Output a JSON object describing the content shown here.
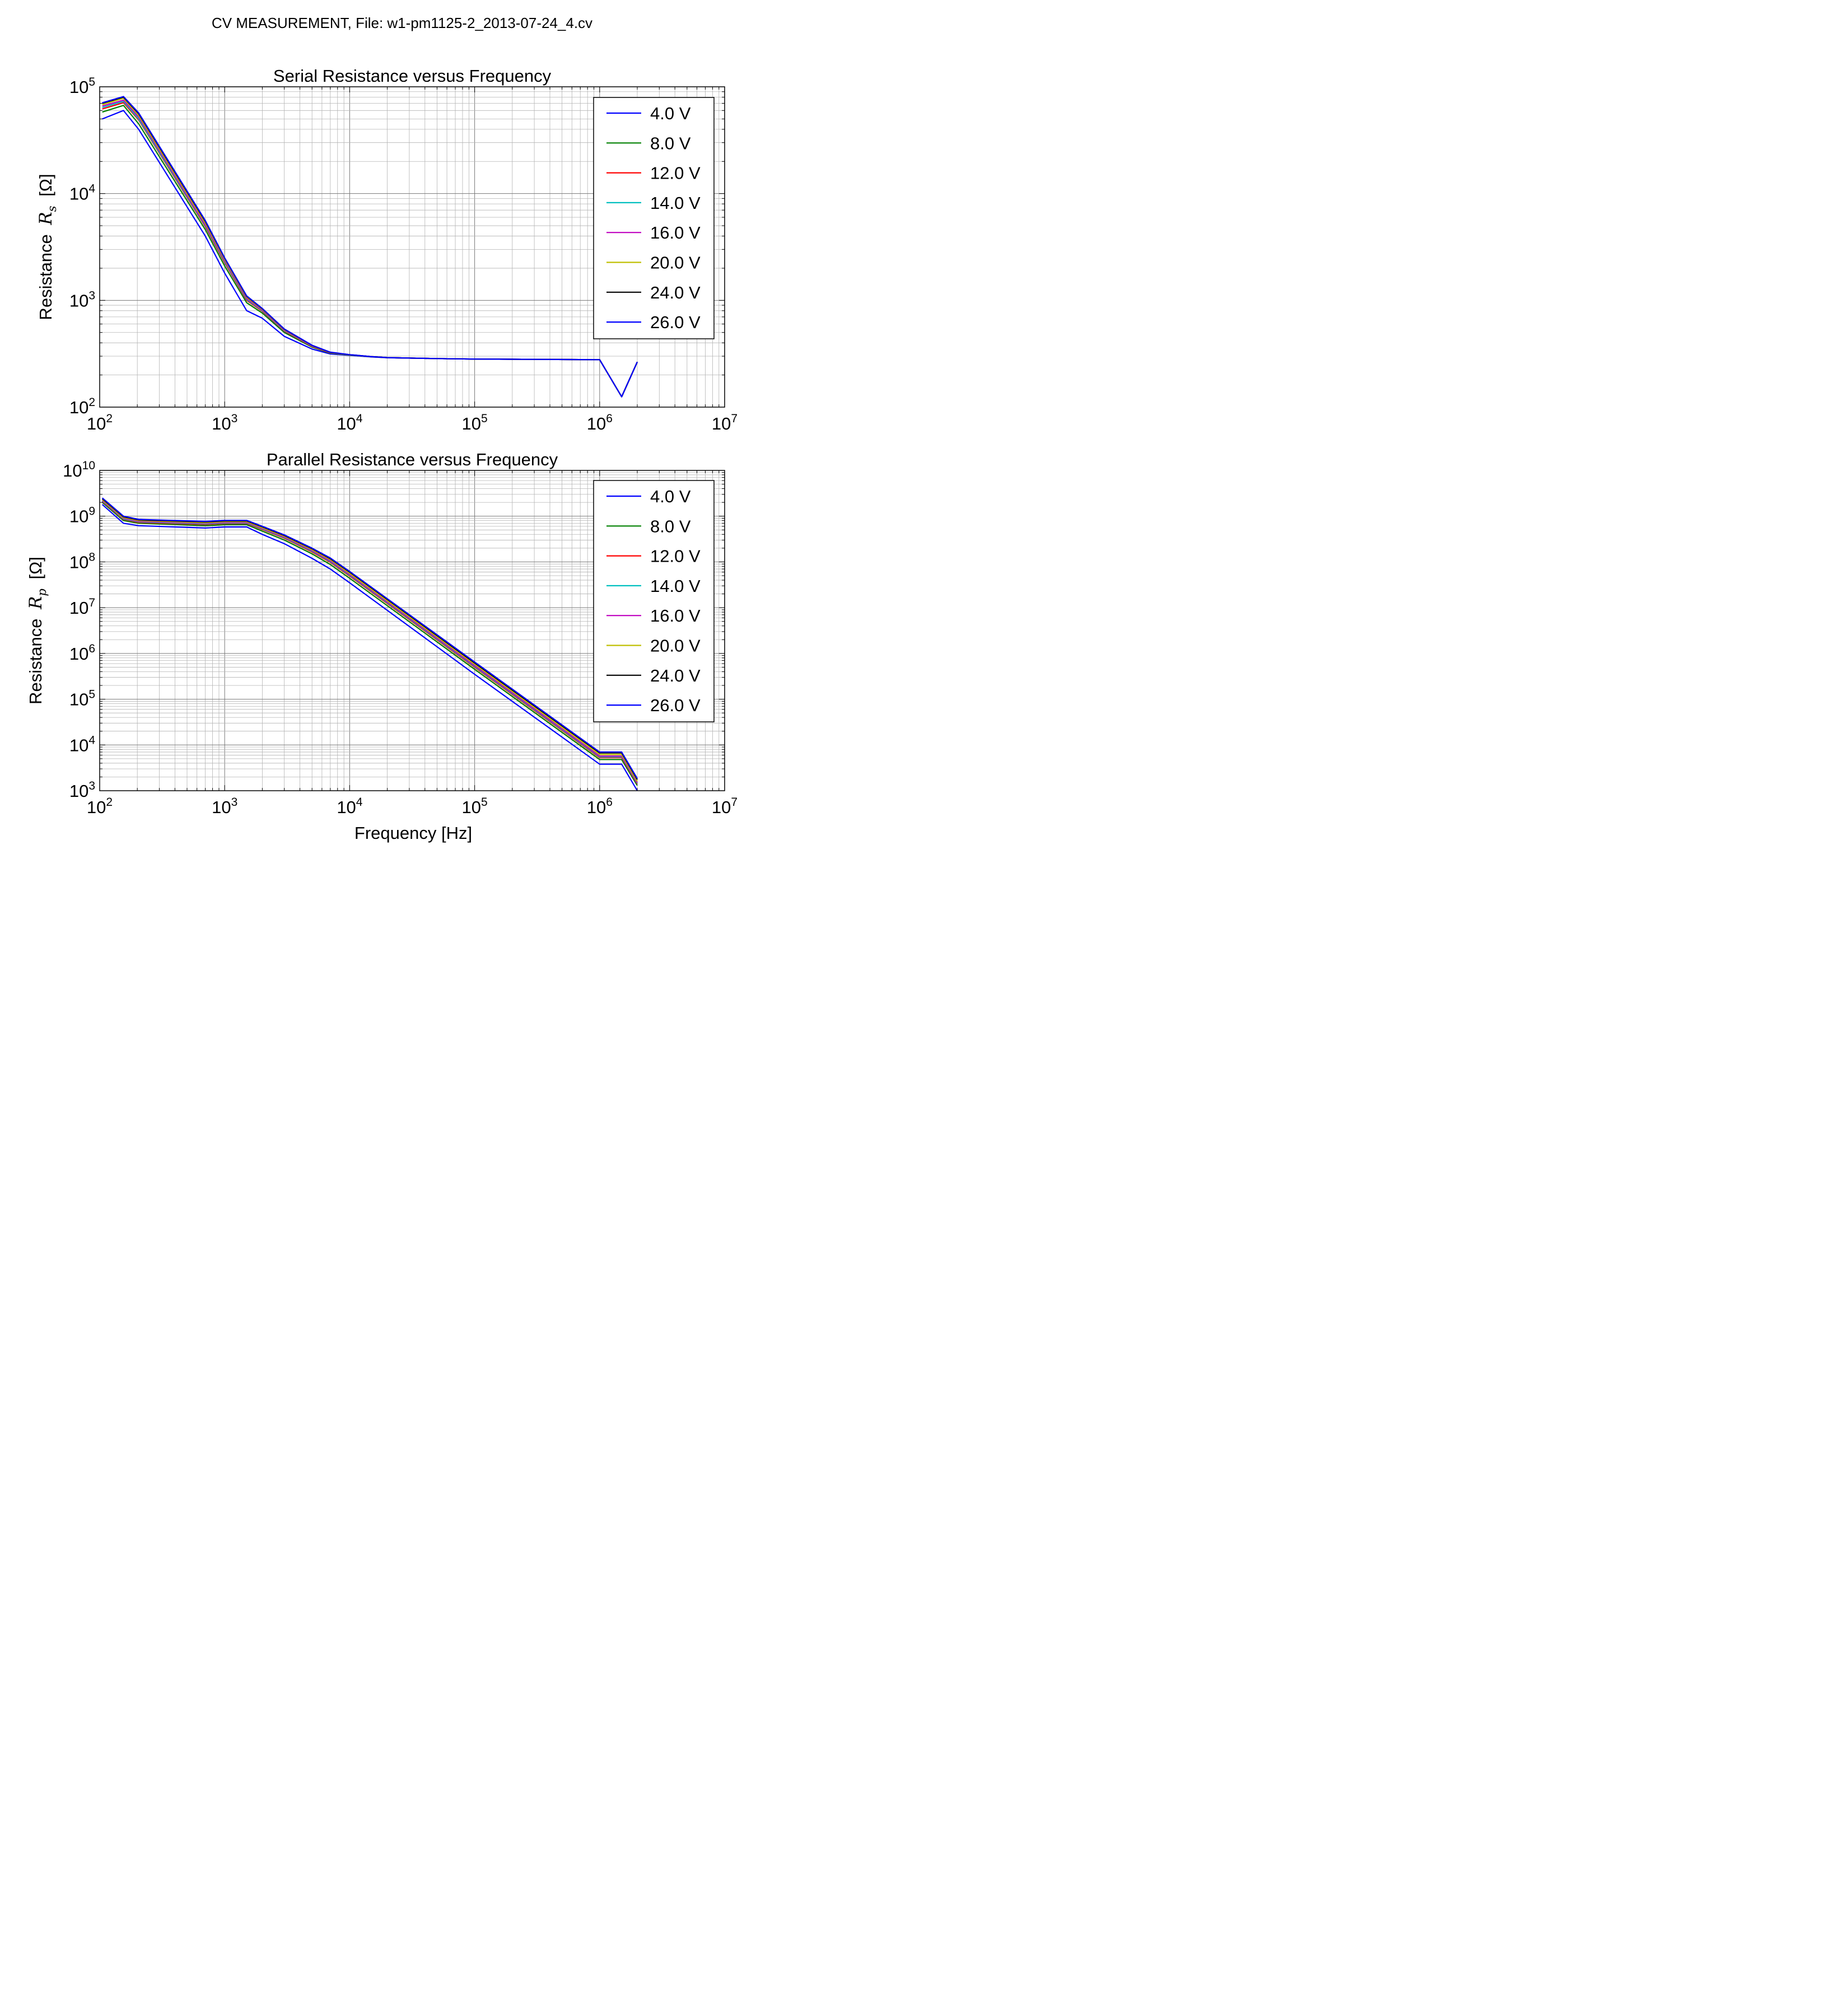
{
  "suptitle": "CV MEASUREMENT, File: w1-pm1125-2_2013-07-24_4.cv",
  "chart_data": [
    {
      "type": "line",
      "title": "Serial Resistance versus Frequency",
      "xlabel": "",
      "ylabel": "Resistance",
      "ylabel_symbol": "R",
      "ylabel_sub": "s",
      "ylabel_unit": "[Ω]",
      "xscale": "log",
      "yscale": "log",
      "xlim": [
        100,
        10000000
      ],
      "ylim": [
        100,
        100000
      ],
      "x_ticks": [
        {
          "base": "10",
          "exp": "2"
        },
        {
          "base": "10",
          "exp": "3"
        },
        {
          "base": "10",
          "exp": "4"
        },
        {
          "base": "10",
          "exp": "5"
        },
        {
          "base": "10",
          "exp": "6"
        },
        {
          "base": "10",
          "exp": "7"
        }
      ],
      "y_ticks": [
        {
          "base": "10",
          "exp": "2"
        },
        {
          "base": "10",
          "exp": "3"
        },
        {
          "base": "10",
          "exp": "4"
        },
        {
          "base": "10",
          "exp": "5"
        }
      ],
      "grid": true,
      "legend_position": "top-right",
      "x": [
        105,
        155,
        205,
        700,
        1000,
        1500,
        2000,
        3000,
        5000,
        7000,
        10000,
        15000,
        20000,
        50000,
        100000,
        300000,
        1000000,
        1500000,
        2000000
      ],
      "series": [
        {
          "name": "4.0 V",
          "color": "#0000ff",
          "values": [
            50000,
            60000,
            40000,
            4000,
            1800,
            800,
            680,
            460,
            350,
            315,
            305,
            295,
            290,
            285,
            282,
            280,
            278,
            125,
            265
          ]
        },
        {
          "name": "8.0 V",
          "color": "#008000",
          "values": [
            58000,
            67000,
            45000,
            4600,
            2100,
            950,
            760,
            500,
            365,
            320,
            307,
            296,
            291,
            285,
            282,
            280,
            278,
            125,
            265
          ]
        },
        {
          "name": "12.0 V",
          "color": "#ff0000",
          "values": [
            62000,
            71000,
            49000,
            4900,
            2250,
            1000,
            790,
            515,
            370,
            322,
            308,
            297,
            291,
            285,
            282,
            280,
            278,
            125,
            265
          ]
        },
        {
          "name": "14.0 V",
          "color": "#00bfbf",
          "values": [
            64000,
            73000,
            50000,
            5000,
            2300,
            1020,
            800,
            520,
            372,
            323,
            308,
            297,
            291,
            285,
            282,
            280,
            278,
            125,
            265
          ]
        },
        {
          "name": "16.0 V",
          "color": "#bf00bf",
          "values": [
            66000,
            75000,
            52000,
            5100,
            2350,
            1040,
            810,
            525,
            374,
            324,
            309,
            297,
            291,
            285,
            282,
            280,
            278,
            125,
            265
          ]
        },
        {
          "name": "20.0 V",
          "color": "#bfbf00",
          "values": [
            68000,
            78000,
            54000,
            5300,
            2420,
            1070,
            825,
            532,
            377,
            325,
            309,
            297,
            291,
            285,
            282,
            280,
            278,
            125,
            265
          ]
        },
        {
          "name": "24.0 V",
          "color": "#000000",
          "values": [
            70000,
            80000,
            56000,
            5500,
            2480,
            1090,
            835,
            537,
            379,
            326,
            310,
            297,
            291,
            285,
            282,
            280,
            278,
            125,
            265
          ]
        },
        {
          "name": "26.0 V",
          "color": "#0000ff",
          "values": [
            71000,
            81000,
            57000,
            5600,
            2500,
            1100,
            840,
            540,
            380,
            327,
            310,
            297,
            291,
            285,
            282,
            280,
            278,
            125,
            265
          ]
        }
      ]
    },
    {
      "type": "line",
      "title": "Parallel Resistance versus Frequency",
      "xlabel": "Frequency [Hz]",
      "ylabel": "Resistance",
      "ylabel_symbol": "R",
      "ylabel_sub": "p",
      "ylabel_unit": "[Ω]",
      "xscale": "log",
      "yscale": "log",
      "xlim": [
        100,
        10000000
      ],
      "ylim": [
        1000,
        10000000000
      ],
      "x_ticks": [
        {
          "base": "10",
          "exp": "2"
        },
        {
          "base": "10",
          "exp": "3"
        },
        {
          "base": "10",
          "exp": "4"
        },
        {
          "base": "10",
          "exp": "5"
        },
        {
          "base": "10",
          "exp": "6"
        },
        {
          "base": "10",
          "exp": "7"
        }
      ],
      "y_ticks": [
        {
          "base": "10",
          "exp": "3"
        },
        {
          "base": "10",
          "exp": "4"
        },
        {
          "base": "10",
          "exp": "5"
        },
        {
          "base": "10",
          "exp": "6"
        },
        {
          "base": "10",
          "exp": "7"
        },
        {
          "base": "10",
          "exp": "8"
        },
        {
          "base": "10",
          "exp": "9"
        },
        {
          "base": "10",
          "exp": "10"
        }
      ],
      "grid": true,
      "legend_position": "top-right",
      "x": [
        105,
        155,
        205,
        700,
        1000,
        1500,
        2000,
        3000,
        5000,
        7000,
        10000,
        100000,
        1000000,
        1500000,
        2000000
      ],
      "series": [
        {
          "name": "4.0 V",
          "color": "#0000ff",
          "values": [
            1800000000,
            700000000,
            620000000,
            550000000,
            580000000,
            580000000,
            400000000,
            250000000,
            120000000,
            70000000,
            35000000,
            350000,
            3800,
            3800,
            1000
          ]
        },
        {
          "name": "8.0 V",
          "color": "#008000",
          "values": [
            2000000000,
            800000000,
            700000000,
            620000000,
            650000000,
            650000000,
            470000000,
            300000000,
            150000000,
            88000000,
            44000000,
            450000,
            4800,
            4800,
            1300
          ]
        },
        {
          "name": "12.0 V",
          "color": "#ff0000",
          "values": [
            2100000000,
            850000000,
            730000000,
            660000000,
            690000000,
            690000000,
            510000000,
            330000000,
            165000000,
            98000000,
            49000000,
            500000,
            5300,
            5300,
            1400
          ]
        },
        {
          "name": "14.0 V",
          "color": "#00bfbf",
          "values": [
            2150000000,
            870000000,
            750000000,
            680000000,
            710000000,
            710000000,
            525000000,
            340000000,
            172000000,
            102000000,
            51000000,
            520000,
            5500,
            5500,
            1450
          ]
        },
        {
          "name": "16.0 V",
          "color": "#bf00bf",
          "values": [
            2200000000,
            900000000,
            770000000,
            700000000,
            730000000,
            730000000,
            540000000,
            350000000,
            178000000,
            106000000,
            53000000,
            540000,
            5700,
            5700,
            1500
          ]
        },
        {
          "name": "20.0 V",
          "color": "#bfbf00",
          "values": [
            2300000000,
            930000000,
            800000000,
            720000000,
            760000000,
            760000000,
            560000000,
            365000000,
            186000000,
            112000000,
            56000000,
            580000,
            6200,
            6200,
            1600
          ]
        },
        {
          "name": "24.0 V",
          "color": "#000000",
          "values": [
            2400000000,
            970000000,
            830000000,
            750000000,
            790000000,
            790000000,
            585000000,
            380000000,
            195000000,
            118000000,
            60000000,
            620000,
            6700,
            6700,
            1750
          ]
        },
        {
          "name": "26.0 V",
          "color": "#0000ff",
          "values": [
            2500000000,
            1000000000,
            850000000,
            770000000,
            810000000,
            810000000,
            600000000,
            390000000,
            200000000,
            122000000,
            62000000,
            650000,
            7000,
            7000,
            1850
          ]
        }
      ]
    }
  ]
}
